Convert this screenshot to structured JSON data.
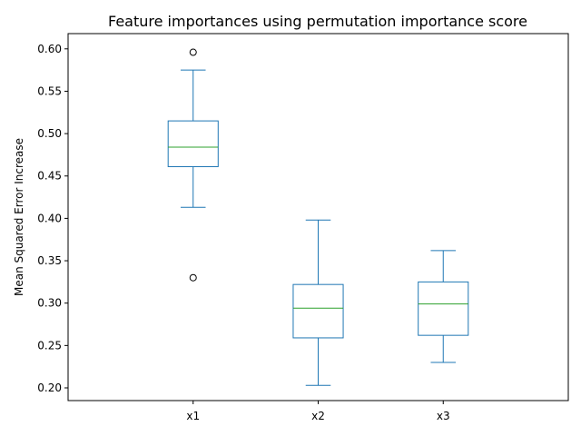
{
  "chart_data": {
    "type": "box",
    "title": "Feature importances using permutation importance score",
    "xlabel": "",
    "ylabel": "Mean Squared Error Increase",
    "ylim": [
      0.185,
      0.618
    ],
    "yticks": [
      "0.20",
      "0.25",
      "0.30",
      "0.35",
      "0.40",
      "0.45",
      "0.50",
      "0.55",
      "0.60"
    ],
    "categories": [
      "x1",
      "x2",
      "x3"
    ],
    "boxes": [
      {
        "name": "x1",
        "whisker_low": 0.413,
        "q1": 0.461,
        "median": 0.484,
        "q3": 0.515,
        "whisker_high": 0.575,
        "outliers": [
          0.596,
          0.33
        ]
      },
      {
        "name": "x2",
        "whisker_low": 0.203,
        "q1": 0.259,
        "median": 0.294,
        "q3": 0.322,
        "whisker_high": 0.398,
        "outliers": []
      },
      {
        "name": "x3",
        "whisker_low": 0.23,
        "q1": 0.262,
        "median": 0.299,
        "q3": 0.325,
        "whisker_high": 0.362,
        "outliers": []
      }
    ],
    "grid": false,
    "colors": {
      "box": "#1f77b4",
      "median": "#2ca02c",
      "outlier": "#000000",
      "axis": "#000000"
    }
  }
}
